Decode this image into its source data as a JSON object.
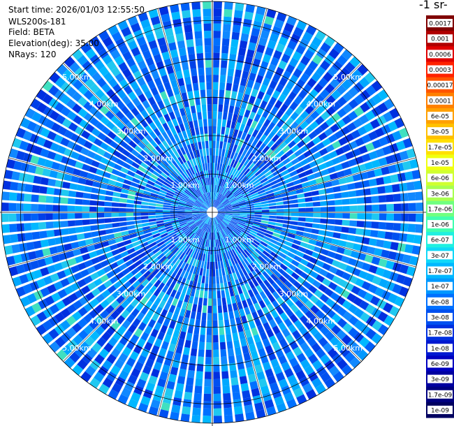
{
  "info": {
    "start_time": "Start time: 2026/01/03 12:55:50",
    "instrument": "WLS200s-181",
    "field": "Field: BETA",
    "elevation": "Elevation(deg): 35.00",
    "nrays": "NRays: 120"
  },
  "chart_data": {
    "type": "ppi-polar-heatmap",
    "field": "BETA",
    "elevation_deg": 35.0,
    "n_rays": 120,
    "max_range_km": 5.5,
    "range_rings_km": [
      1,
      2,
      3,
      4,
      5
    ],
    "ring_labels": [
      "1.00km",
      "2.00km",
      "3.00km",
      "4.00km",
      "5.00km"
    ],
    "colorbar_title": "-1 sr-",
    "colorbar_levels": [
      "0.0017",
      "0.001",
      "0.0006",
      "0.0003",
      "0.00017",
      "0.0001",
      "6e-05",
      "3e-05",
      "1.7e-05",
      "1e-05",
      "6e-06",
      "3e-06",
      "1.7e-06",
      "1e-06",
      "6e-07",
      "3e-07",
      "1.7e-07",
      "1e-07",
      "6e-08",
      "3e-08",
      "1.7e-08",
      "1e-08",
      "6e-09",
      "3e-09",
      "1.7e-09",
      "1e-09"
    ],
    "colorbar_colors": [
      "#800000",
      "#b00000",
      "#e00000",
      "#ff2200",
      "#ff5500",
      "#ff8000",
      "#ffa000",
      "#ffc000",
      "#ffe000",
      "#f0ff10",
      "#d0ff30",
      "#a8ff50",
      "#70ff80",
      "#40ffb0",
      "#20f0e0",
      "#10d8f8",
      "#00b8ff",
      "#0098ff",
      "#0070ff",
      "#0050f0",
      "#0030e0",
      "#0018d0",
      "#0000c0",
      "#0000a0",
      "#000080",
      "#000060"
    ],
    "dominant_value_range": [
      "1.7e-08",
      "1e-07"
    ]
  }
}
